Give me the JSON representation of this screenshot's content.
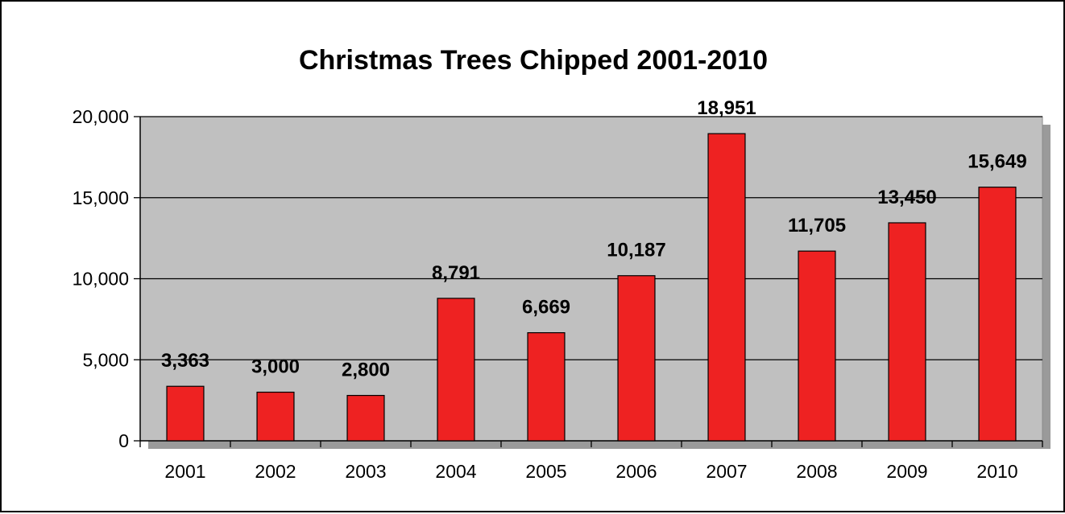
{
  "chart_data": {
    "type": "bar",
    "title": "Christmas Trees Chipped 2001-2010",
    "xlabel": "",
    "ylabel": "",
    "categories": [
      "2001",
      "2002",
      "2003",
      "2004",
      "2005",
      "2006",
      "2007",
      "2008",
      "2009",
      "2010"
    ],
    "values": [
      3363,
      3000,
      2800,
      8791,
      6669,
      10187,
      18951,
      11705,
      13450,
      15649
    ],
    "data_labels": [
      "3,363",
      "3,000",
      "2,800",
      "8,791",
      "6,669",
      "10,187",
      "18,951",
      "11,705",
      "13,450",
      "15,649"
    ],
    "ylim": [
      0,
      20000
    ],
    "yticks": [
      0,
      5000,
      10000,
      15000,
      20000
    ],
    "ytick_labels": [
      "0",
      "5,000",
      "10,000",
      "15,000",
      "20,000"
    ],
    "grid": true,
    "legend": "none",
    "colors": {
      "bar": "#ee2222",
      "bar_stroke": "#000000",
      "plot_background": "#c0c0c0",
      "plot_shadow": "#9a9a9a"
    }
  }
}
